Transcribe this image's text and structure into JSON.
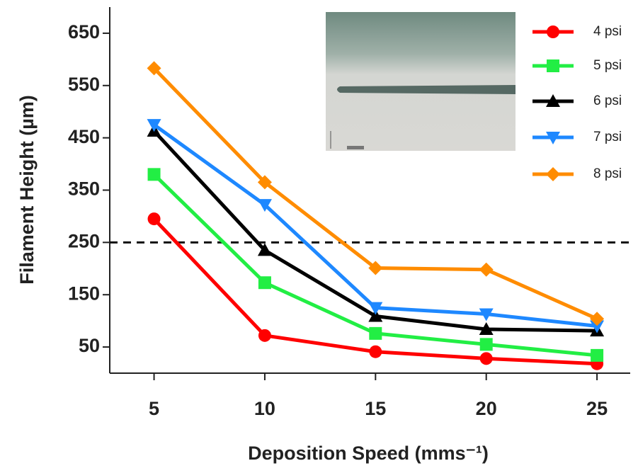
{
  "chart_data": {
    "type": "line",
    "x_label": "Deposition Speed (mms⁻¹)",
    "y_label": "Filament Height (µm)",
    "x": [
      5,
      10,
      15,
      20,
      25
    ],
    "xlim": [
      3,
      26.5
    ],
    "xticks": [
      5,
      10,
      15,
      20,
      25
    ],
    "ylim": [
      0,
      700
    ],
    "yticks": [
      50,
      150,
      250,
      350,
      450,
      550,
      650
    ],
    "reference_line": 250,
    "series": [
      {
        "name": "4 psi",
        "color": "#ff0000",
        "marker": "circle",
        "values": [
          295,
          72,
          41,
          28,
          18
        ]
      },
      {
        "name": "5 psi",
        "color": "#22ee44",
        "marker": "square",
        "values": [
          380,
          173,
          76,
          55,
          34
        ]
      },
      {
        "name": "6 psi",
        "color": "#000000",
        "marker": "triangle-up",
        "values": [
          463,
          235,
          109,
          84,
          81
        ]
      },
      {
        "name": "7 psi",
        "color": "#1e88ff",
        "marker": "triangle-down",
        "values": [
          475,
          322,
          125,
          113,
          90
        ]
      },
      {
        "name": "8 psi",
        "color": "#ff8c00",
        "marker": "diamond",
        "values": [
          583,
          365,
          201,
          198,
          104
        ]
      }
    ]
  }
}
